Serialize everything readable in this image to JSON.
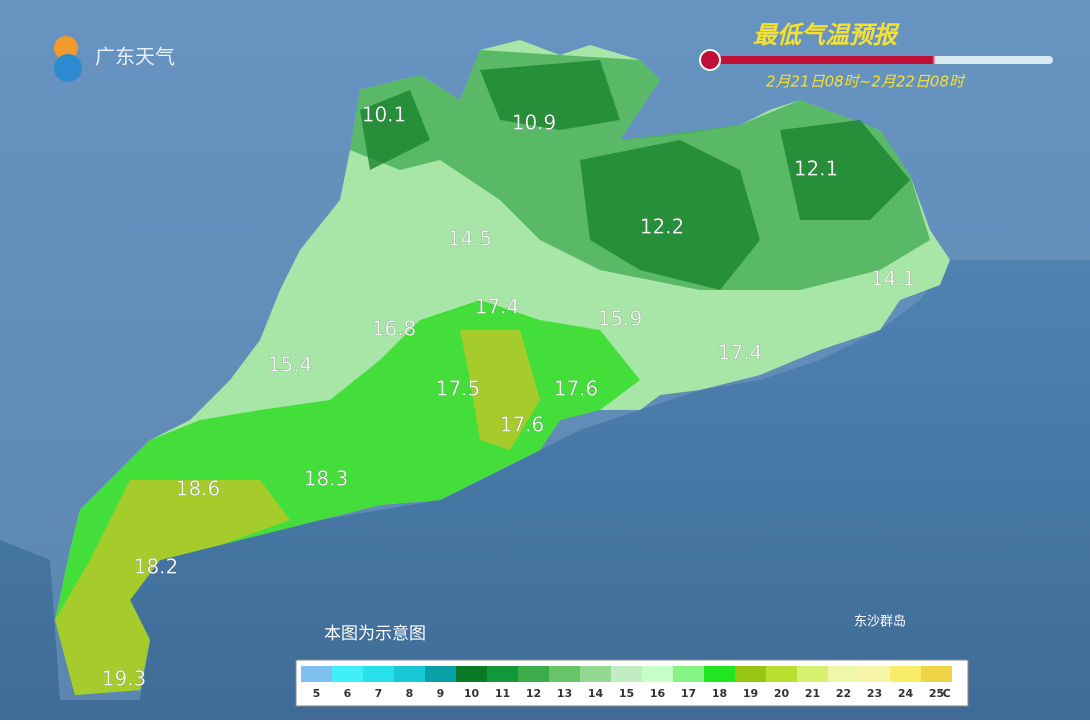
{
  "header": {
    "logo": "广东天气",
    "title": "最低气温预报",
    "subtitle": "2月21日08时~2月22日08时"
  },
  "map": {
    "labels": [
      10.1,
      10.9,
      12.1,
      12.2,
      14.5,
      14.1,
      17.4,
      16.8,
      15.9,
      17.4,
      15.4,
      17.5,
      17.6,
      17.6,
      18.6,
      18.3,
      18.2,
      19.3
    ],
    "note": "本图为示意图",
    "island": "东沙群岛"
  },
  "legend": {
    "values": [
      5,
      6,
      7,
      8,
      9,
      10,
      11,
      12,
      13,
      14,
      15,
      16,
      17,
      18,
      19,
      20,
      21,
      22,
      23,
      24,
      25
    ],
    "colors": [
      "#80c0f0",
      "#40f0f8",
      "#28e0ea",
      "#18c8d4",
      "#0aa0a8",
      "#0a7a28",
      "#12983a",
      "#3aac4a",
      "#68c468",
      "#94d894",
      "#c2ecc2",
      "#c8ffc8",
      "#84f484",
      "#22e622",
      "#98c414",
      "#b8e030",
      "#d8f070",
      "#eef8a8",
      "#f8f4a8",
      "#f8ec68",
      "#f0d448"
    ],
    "unit": "℃"
  }
}
